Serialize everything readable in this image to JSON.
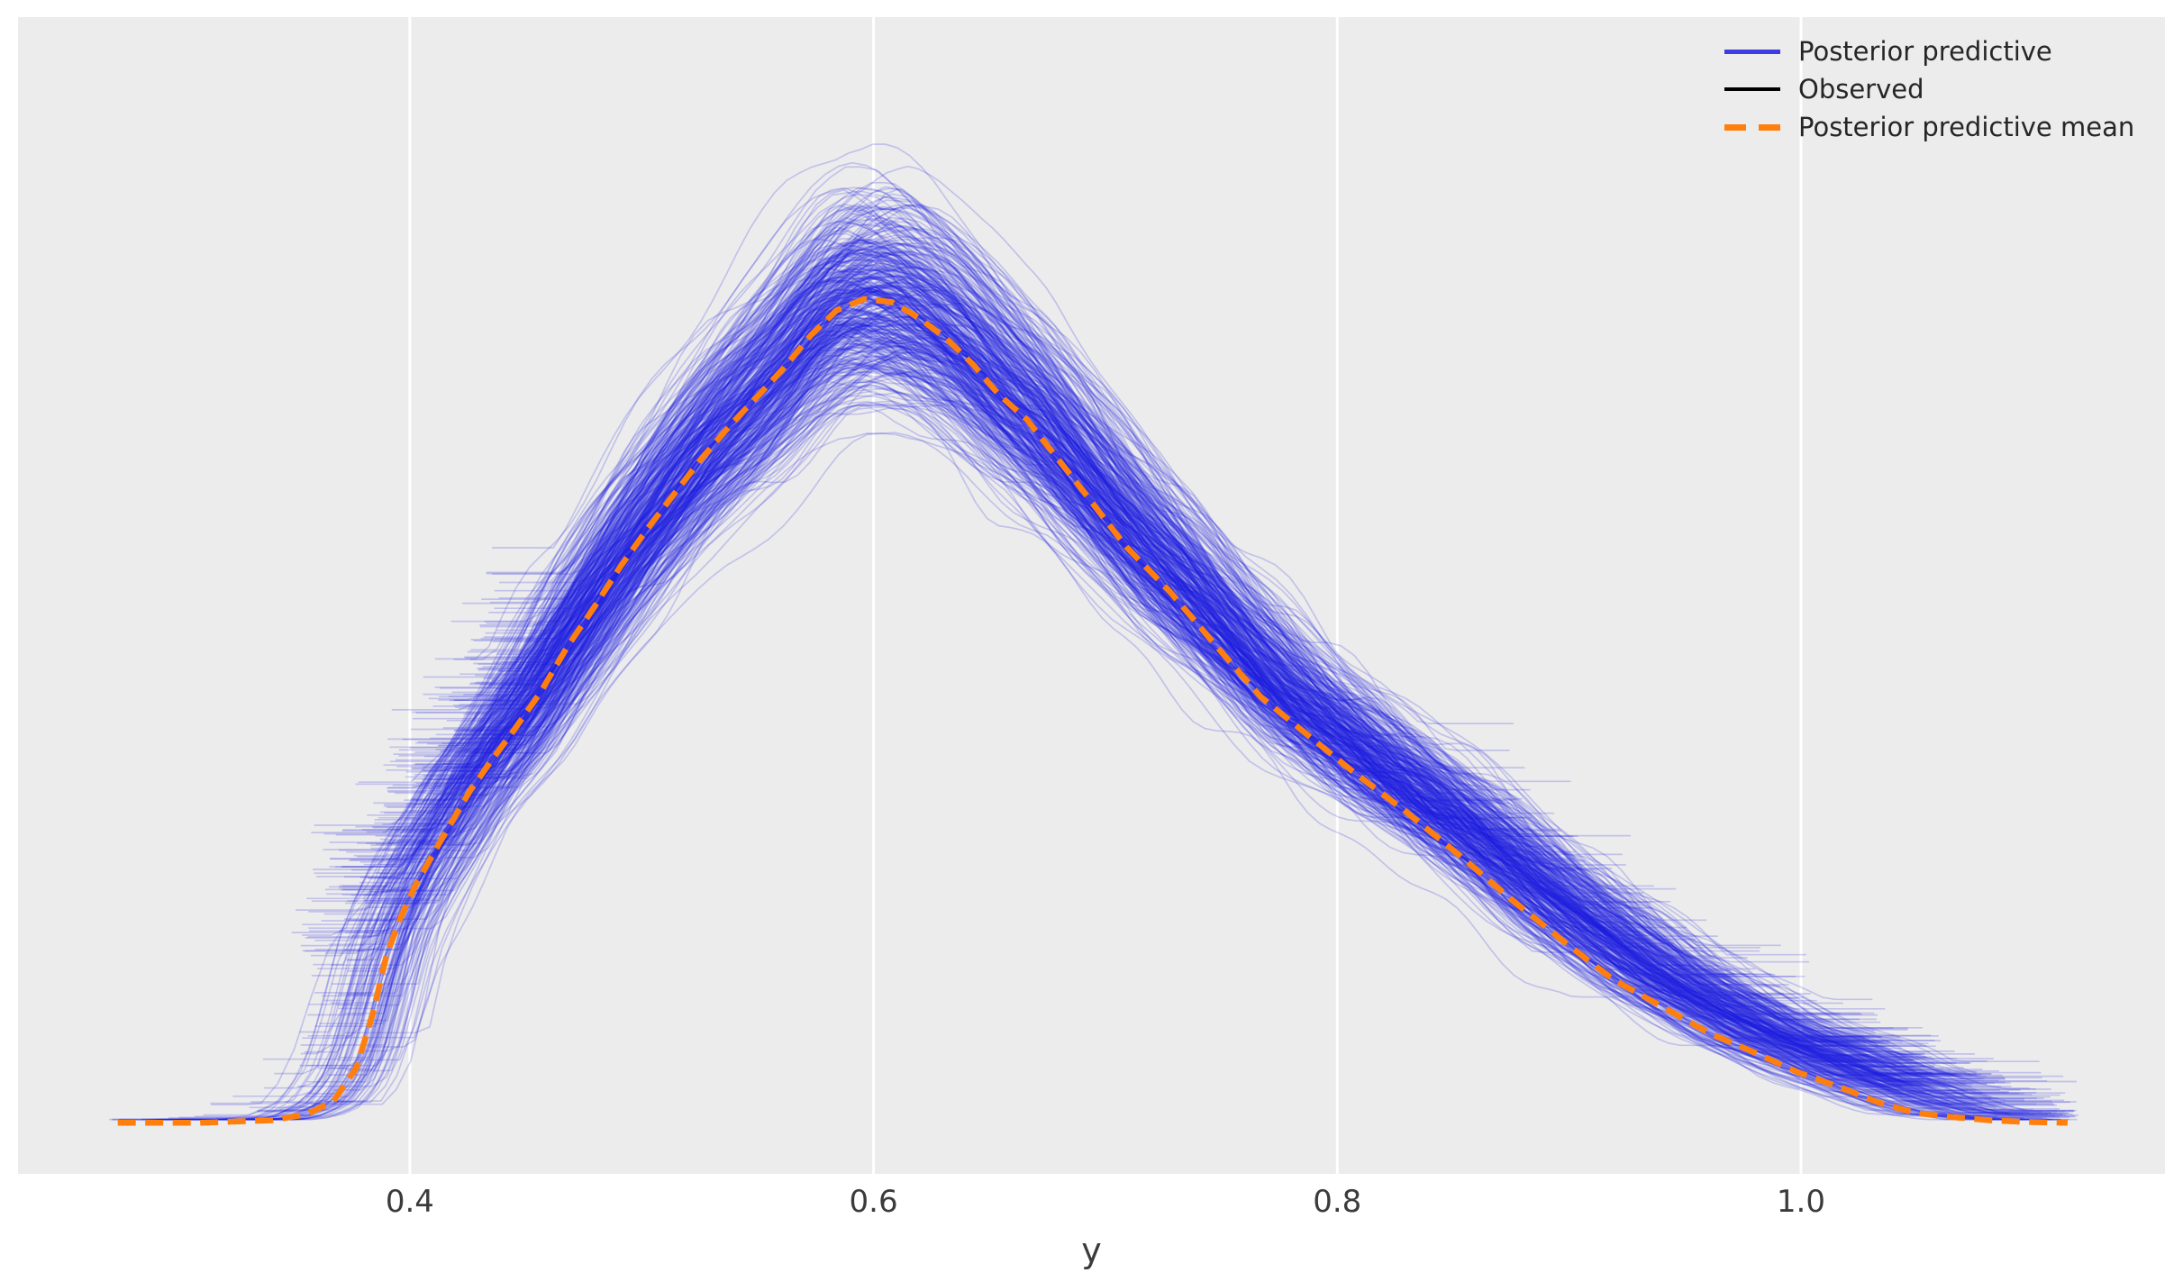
{
  "chart_data": {
    "type": "line",
    "title": "",
    "xlabel": "y",
    "ylabel": "",
    "xticks": [
      0.4,
      0.6,
      0.8,
      1.0
    ],
    "xtick_labels": [
      "0.4",
      "0.6",
      "0.8",
      "1.0"
    ],
    "xlim": [
      0.231,
      1.157
    ],
    "ylim_density": [
      -0.062,
      1.342
    ],
    "grid": "vertical-only",
    "legend_position": "upper-right",
    "series": [
      {
        "name": "Posterior predictive",
        "type": "kde-ensemble",
        "color": "#1c1ce0",
        "alpha": 0.2,
        "n_lines": 430,
        "style": "solid"
      },
      {
        "name": "Observed",
        "color": "#000000",
        "style": "solid",
        "visible_in_plot": false
      },
      {
        "name": "Posterior predictive mean",
        "color": "#ff7f0e",
        "style": "dashed"
      }
    ],
    "mean_curve": {
      "x": [
        0.274,
        0.309,
        0.34,
        0.355,
        0.367,
        0.377,
        0.384,
        0.39,
        0.396,
        0.402,
        0.41,
        0.417,
        0.426,
        0.435,
        0.445,
        0.456,
        0.468,
        0.48,
        0.491,
        0.503,
        0.515,
        0.526,
        0.538,
        0.55,
        0.561,
        0.573,
        0.584,
        0.596,
        0.608,
        0.619,
        0.631,
        0.643,
        0.654,
        0.666,
        0.678,
        0.689,
        0.709,
        0.728,
        0.748,
        0.767,
        0.788,
        0.806,
        0.829,
        0.853,
        0.876,
        0.899,
        0.919,
        0.942,
        0.961,
        0.977,
        0.999,
        1.017,
        1.033,
        1.049,
        1.065,
        1.082,
        1.098,
        1.115
      ],
      "density": [
        0.0,
        0.0,
        0.003,
        0.01,
        0.026,
        0.067,
        0.132,
        0.204,
        0.249,
        0.286,
        0.326,
        0.36,
        0.403,
        0.439,
        0.477,
        0.521,
        0.578,
        0.628,
        0.676,
        0.723,
        0.767,
        0.807,
        0.846,
        0.882,
        0.915,
        0.956,
        0.986,
        1.0,
        0.996,
        0.978,
        0.953,
        0.92,
        0.884,
        0.854,
        0.811,
        0.772,
        0.699,
        0.644,
        0.578,
        0.517,
        0.469,
        0.428,
        0.379,
        0.324,
        0.269,
        0.217,
        0.174,
        0.138,
        0.108,
        0.089,
        0.061,
        0.043,
        0.025,
        0.012,
        0.007,
        0.003,
        0.001,
        0.0
      ],
      "peak_x": 0.596,
      "peak_density": 1.0
    },
    "band": {
      "peak_amplitude_range": [
        0.86,
        1.15
      ],
      "stray_max_amplitude": 1.27,
      "left_endpoints_x": [
        0.27,
        0.44
      ],
      "right_endpoints_x": [
        0.87,
        1.12
      ]
    }
  },
  "axis": {
    "xlabel": "y",
    "tick_labels": [
      "0.4",
      "0.6",
      "0.8",
      "1.0"
    ]
  },
  "legend": {
    "items": [
      {
        "label": "Posterior predictive",
        "color": "#3c3ce2",
        "dash": "solid"
      },
      {
        "label": "Observed",
        "color": "#000000",
        "dash": "solid"
      },
      {
        "label": "Posterior predictive mean",
        "color": "#ff7f0e",
        "dash": "dashed"
      }
    ]
  },
  "colors": {
    "figure_background": "#ffffff",
    "axes_background": "#ececec",
    "grid": "#ffffff",
    "blue_line": "#1c1ce0",
    "orange": "#ff7f0e",
    "tick_text": "#3b3b3b",
    "legend_text": "#262626"
  }
}
